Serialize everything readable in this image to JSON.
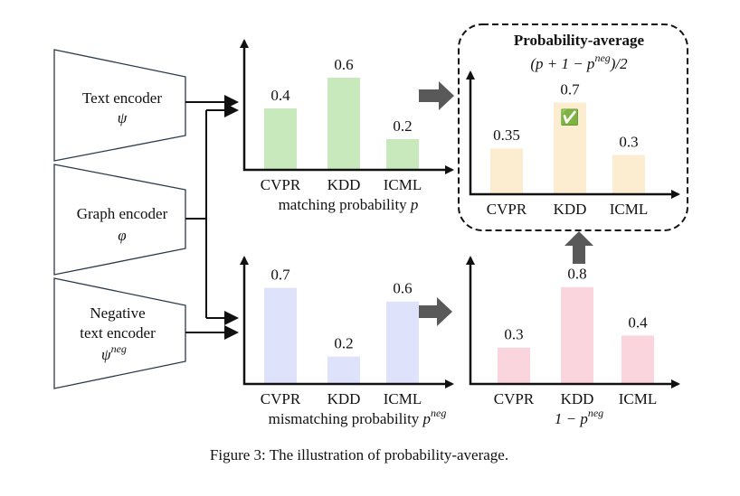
{
  "encoders": [
    {
      "lines": [
        "Text encoder"
      ],
      "symbol": "ψ"
    },
    {
      "lines": [
        "Graph encoder"
      ],
      "symbol": "φ"
    },
    {
      "lines": [
        "Negative",
        "text encoder"
      ],
      "symbol": "ψ",
      "sup": "neg"
    }
  ],
  "panels": [
    {
      "categories": [
        "CVPR",
        "KDD",
        "ICML"
      ],
      "values": [
        0.4,
        0.6,
        0.2
      ],
      "color": "#c8e9bb",
      "caption": "matching probability",
      "symbol": "p"
    },
    {
      "title": "Probability-average",
      "formula": "(p + 1 − p",
      "formula_sup": "neg",
      "formula_end": ")/2",
      "categories": [
        "CVPR",
        "KDD",
        "ICML"
      ],
      "values": [
        0.35,
        0.7,
        0.3
      ],
      "color": "#fdedd0",
      "check": "✅"
    },
    {
      "categories": [
        "CVPR",
        "KDD",
        "ICML"
      ],
      "values": [
        0.7,
        0.2,
        0.6
      ],
      "color": "#dfe2fb",
      "caption": "mismatching probability",
      "symbol": "p",
      "sup": "neg"
    },
    {
      "categories": [
        "CVPR",
        "KDD",
        "ICML"
      ],
      "values": [
        0.3,
        0.8,
        0.4
      ],
      "color": "#fbd5de",
      "symbol": "1 − p",
      "sup": "neg"
    }
  ],
  "caption": "Figure 3: The illustration of probability-average."
}
